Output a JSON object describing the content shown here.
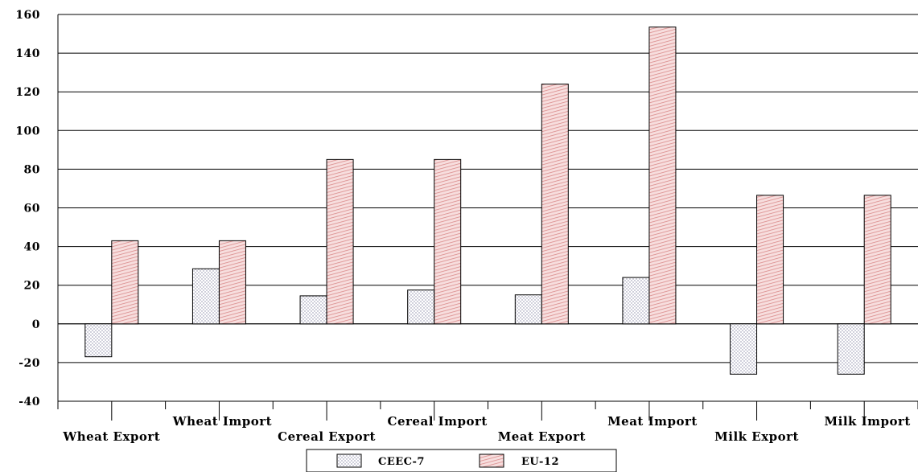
{
  "chart_data": {
    "type": "bar",
    "categories": [
      "Wheat Export",
      "Wheat Import",
      "Cereal Export",
      "Cereal Import",
      "Meat Export",
      "Meat Import",
      "Milk Export",
      "Milk Import"
    ],
    "series": [
      {
        "name": "CEEC-7",
        "values": [
          -17,
          28.5,
          14.5,
          17.5,
          15,
          24,
          -26,
          -26
        ],
        "color": "#e6e6f0"
      },
      {
        "name": "EU-12",
        "values": [
          43,
          43,
          85,
          85,
          124,
          153.5,
          66.5,
          66.5
        ],
        "color": "#f2b8b8"
      }
    ],
    "ylim": [
      -40,
      160
    ],
    "yticks": [
      -40,
      -20,
      0,
      20,
      40,
      60,
      80,
      100,
      120,
      140,
      160
    ],
    "grid": true,
    "legend_position": "bottom-center",
    "title": "",
    "xlabel": "",
    "ylabel": ""
  }
}
